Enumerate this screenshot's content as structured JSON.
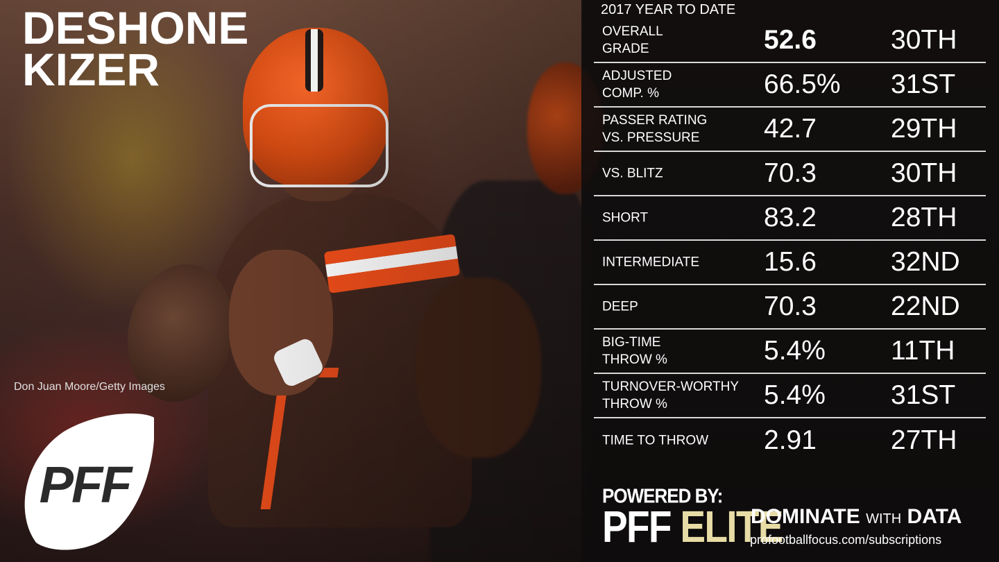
{
  "player": {
    "first_name": "DESHONE",
    "last_name": "KIZER"
  },
  "photo_credit": "Don Juan Moore/Getty Images",
  "logo_text": "PFF",
  "panel": {
    "title": "2017 YEAR TO DATE",
    "rows": [
      {
        "label": "OVERALL\nGRADE",
        "value": "52.6",
        "rank": "30TH"
      },
      {
        "label": "ADJUSTED\nCOMP. %",
        "value": "66.5%",
        "rank": "31ST"
      },
      {
        "label": "PASSER RATING\nVS. PRESSURE",
        "value": "42.7",
        "rank": "29TH"
      },
      {
        "label": "VS. BLITZ",
        "value": "70.3",
        "rank": "30TH"
      },
      {
        "label": "SHORT",
        "value": "83.2",
        "rank": "28TH"
      },
      {
        "label": "INTERMEDIATE",
        "value": "15.6",
        "rank": "32ND"
      },
      {
        "label": "DEEP",
        "value": "70.3",
        "rank": "22ND"
      },
      {
        "label": "BIG-TIME\nTHROW %",
        "value": "5.4%",
        "rank": "11TH"
      },
      {
        "label": "TURNOVER-WORTHY\nTHROW %",
        "value": "5.4%",
        "rank": "31ST"
      },
      {
        "label": "TIME TO THROW",
        "value": "2.91",
        "rank": "27TH"
      }
    ]
  },
  "footer": {
    "powered_by": "POWERED BY:",
    "pff": "PFF",
    "elite": "ELITE",
    "dominate": "DOMINATE",
    "with": "WITH",
    "data": "DATA",
    "url": "profootballfocus.com/subscriptions"
  },
  "colors": {
    "elite_gold": "#e7dca5",
    "browns_orange": "#f04e1a",
    "browns_brown": "#311d00"
  }
}
